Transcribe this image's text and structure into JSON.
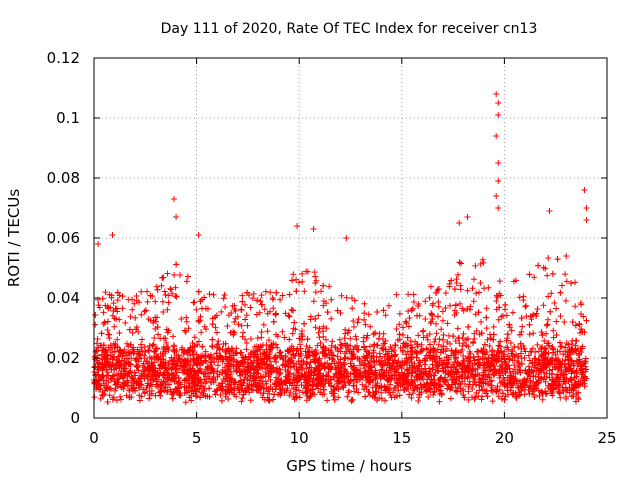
{
  "chart_data": {
    "type": "scatter",
    "title": "Day 111 of 2020, Rate Of TEC Index for receiver cn13",
    "xlabel": "GPS time / hours",
    "ylabel": "ROTI / TECUs",
    "xlim": [
      0,
      25
    ],
    "ylim": [
      0,
      0.12
    ],
    "x_ticks": [
      0,
      5,
      10,
      15,
      20,
      25
    ],
    "x_tick_labels": [
      "0",
      "5",
      "10",
      "15",
      "20",
      "25"
    ],
    "y_ticks": [
      0,
      0.02,
      0.04,
      0.06,
      0.08,
      0.1,
      0.12
    ],
    "y_tick_labels": [
      "0",
      "0.02",
      "0.04",
      "0.06",
      "0.08",
      "0.1",
      "0.12"
    ],
    "grid": true,
    "marker": "plus",
    "series": [
      {
        "name": "ROTI",
        "color": "#ff0000",
        "baseline_band": [
          0.008,
          0.022
        ],
        "notable_points": [
          {
            "x": 0.2,
            "y": 0.058
          },
          {
            "x": 0.9,
            "y": 0.061
          },
          {
            "x": 3.9,
            "y": 0.073
          },
          {
            "x": 4.0,
            "y": 0.067
          },
          {
            "x": 5.1,
            "y": 0.061
          },
          {
            "x": 9.9,
            "y": 0.064
          },
          {
            "x": 10.7,
            "y": 0.063
          },
          {
            "x": 12.3,
            "y": 0.06
          },
          {
            "x": 17.8,
            "y": 0.065
          },
          {
            "x": 18.2,
            "y": 0.067
          },
          {
            "x": 19.6,
            "y": 0.108
          },
          {
            "x": 19.7,
            "y": 0.105
          },
          {
            "x": 19.7,
            "y": 0.101
          },
          {
            "x": 19.6,
            "y": 0.094
          },
          {
            "x": 19.7,
            "y": 0.085
          },
          {
            "x": 19.7,
            "y": 0.079
          },
          {
            "x": 19.6,
            "y": 0.074
          },
          {
            "x": 19.7,
            "y": 0.07
          },
          {
            "x": 22.2,
            "y": 0.069
          },
          {
            "x": 23.9,
            "y": 0.076
          },
          {
            "x": 24.0,
            "y": 0.07
          },
          {
            "x": 24.0,
            "y": 0.066
          }
        ]
      }
    ]
  }
}
